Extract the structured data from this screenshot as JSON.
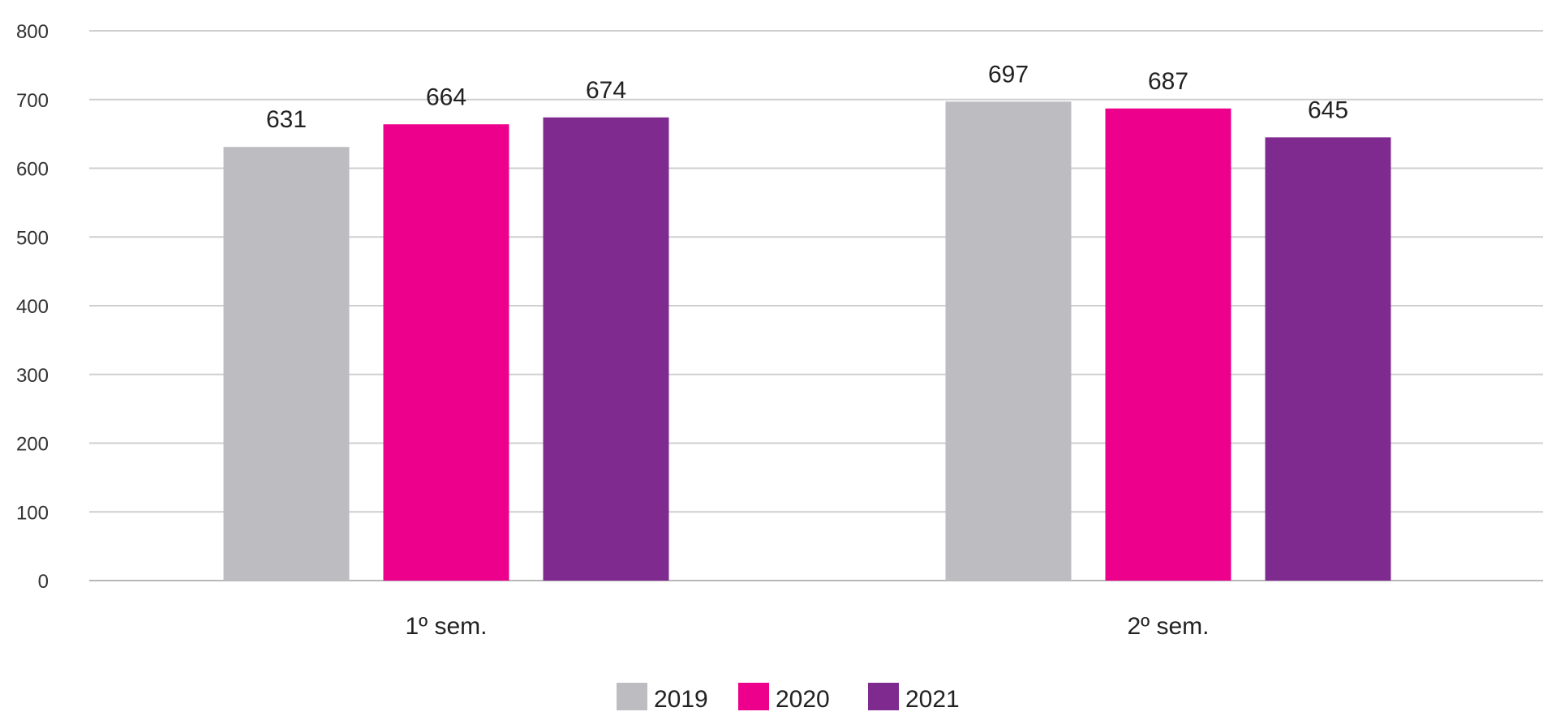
{
  "chart_data": {
    "type": "bar",
    "title": "",
    "xlabel": "",
    "ylabel": "",
    "categories": [
      "1º sem.",
      "2º sem."
    ],
    "series": [
      {
        "name": "2019",
        "color": "#bdbcc1",
        "values": [
          631,
          697
        ]
      },
      {
        "name": "2020",
        "color": "#ec008c",
        "values": [
          664,
          687
        ]
      },
      {
        "name": "2021",
        "color": "#7f2a8f",
        "values": [
          674,
          645
        ]
      }
    ],
    "ylim": [
      0,
      800
    ],
    "yticks": [
      0,
      100,
      200,
      300,
      400,
      500,
      600,
      700,
      800
    ],
    "grid": true,
    "legend_position": "bottom-center",
    "data_labels": true
  }
}
